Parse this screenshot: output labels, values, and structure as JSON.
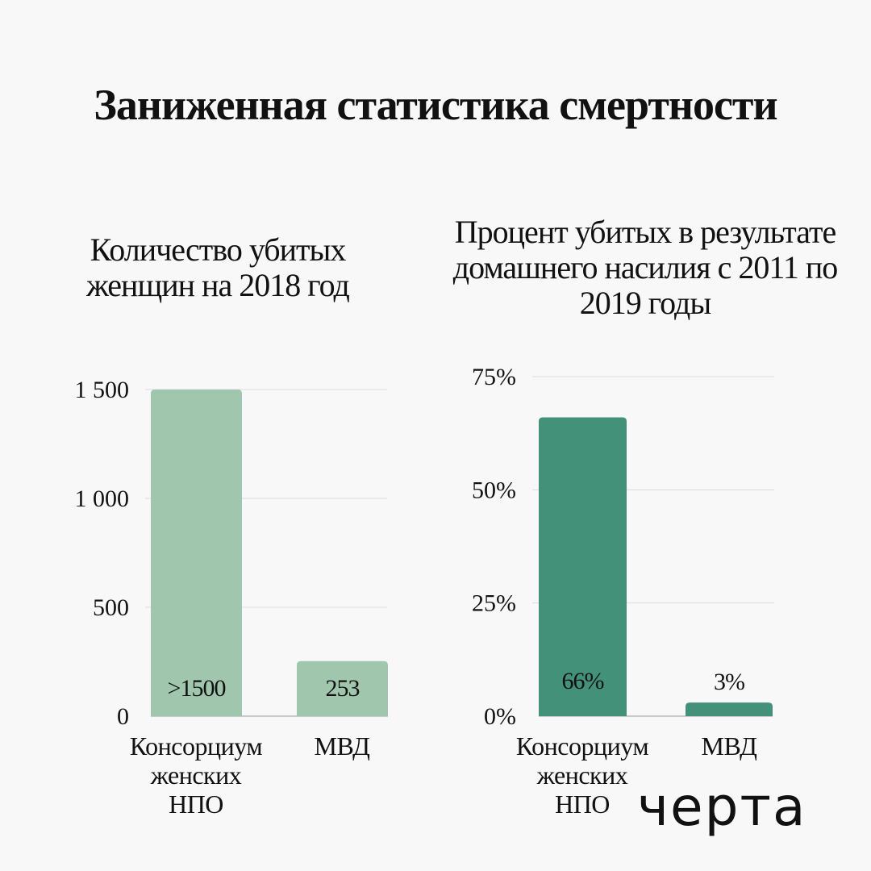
{
  "title": "Заниженная статистика смертности",
  "logo": "черта",
  "colors": {
    "left_bar": "#a0c7ad",
    "right_bar": "#44917a",
    "background": "#f8f8f8",
    "grid": "#dcdcdc"
  },
  "chart_data": [
    {
      "type": "bar",
      "title": "Количество убитых женщин на 2018 год",
      "categories": [
        "Консорциум женских НПО",
        "МВД"
      ],
      "values": [
        1500,
        253
      ],
      "data_labels": [
        ">1500",
        "253"
      ],
      "yticks": [
        "0",
        "500",
        "1 000",
        "1 500"
      ],
      "ytick_values": [
        0,
        500,
        1000,
        1500
      ],
      "ylim": [
        0,
        1500
      ],
      "grid": true
    },
    {
      "type": "bar",
      "title": "Процент убитых в результате домашнего насилия с 2011 по 2019 годы",
      "categories": [
        "Консорциум женских НПО",
        "МВД"
      ],
      "values": [
        66,
        3
      ],
      "data_labels": [
        "66%",
        "3%"
      ],
      "yticks": [
        "0%",
        "25%",
        "50%",
        "75%"
      ],
      "ytick_values": [
        0,
        25,
        50,
        75
      ],
      "ylim": [
        0,
        75
      ],
      "grid": true
    }
  ]
}
